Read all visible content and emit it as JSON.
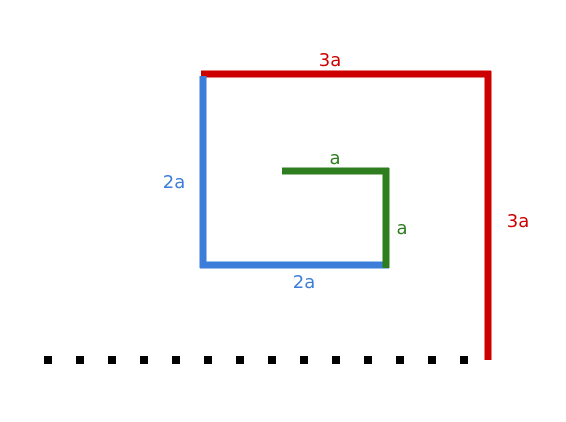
{
  "diagram": {
    "segments": [
      {
        "id": "red",
        "color": "#cc0000",
        "label": "3a"
      },
      {
        "id": "red-vertical",
        "color": "#cc0000",
        "label": "3a"
      },
      {
        "id": "blue",
        "color": "#3b7dd8",
        "label": "2a"
      },
      {
        "id": "blue-bottom",
        "color": "#3b7dd8",
        "label": "2a"
      },
      {
        "id": "green",
        "color": "#2e7d1e",
        "label": "a"
      },
      {
        "id": "green-vertical",
        "color": "#2e7d1e",
        "label": "a"
      }
    ],
    "dots_color": "#000000"
  }
}
